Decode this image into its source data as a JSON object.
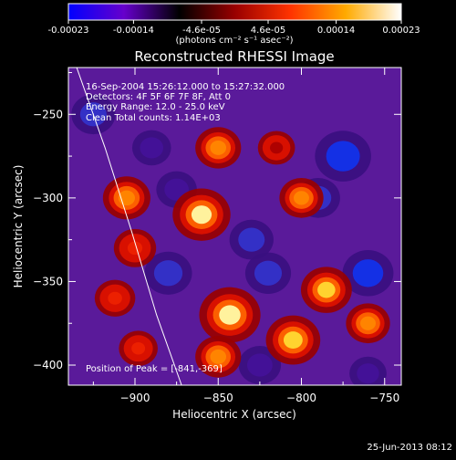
{
  "colorbar": {
    "tick_labels": [
      "-0.00023",
      "-0.00014",
      "-4.6e-05",
      "4.6e-05",
      "0.00014",
      "0.00023"
    ],
    "tick_values": [
      -0.00023,
      -0.00014,
      -4.6e-05,
      4.6e-05,
      0.00014,
      0.00023
    ],
    "range": [
      -0.00023,
      0.00023
    ],
    "units_label": "(photons cm⁻² s⁻¹ asec⁻²)",
    "colors": [
      "#0000ff",
      "#6600cc",
      "#000000",
      "#990000",
      "#ff3300",
      "#ffaa00",
      "#ffffff"
    ]
  },
  "chart_data": {
    "type": "heatmap",
    "title": "Reconstructed RHESSI Image",
    "xlabel": "Heliocentric X (arcsec)",
    "ylabel": "Heliocentric Y (arcsec)",
    "xlim": [
      -940,
      -740
    ],
    "ylim": [
      -412,
      -222
    ],
    "x_ticks": [
      -900,
      -850,
      -800,
      -750
    ],
    "y_ticks": [
      -250,
      -300,
      -350,
      -400
    ],
    "x_tick_labels": [
      "−900",
      "−850",
      "−800",
      "−750"
    ],
    "y_tick_labels": [
      "−250",
      "−300",
      "−350",
      "−400"
    ],
    "annotations": [
      "16-Sep-2004 15:26:12.000 to 15:27:32.000",
      "Detectors: 4F 5F 6F 7F 8F, Att 0",
      "Energy Range: 12.0 - 25.0 keV",
      "Clean    Total counts: 1.14E+03"
    ],
    "peak_label": "Position of Peak = [-841,-369]",
    "peak": [
      -841,
      -369
    ],
    "limb_curve": [
      [
        -935,
        -222
      ],
      [
        -918,
        -270
      ],
      [
        -902,
        -320
      ],
      [
        -887,
        -370
      ],
      [
        -872,
        -412
      ]
    ],
    "sources": [
      {
        "x": -850,
        "y": -270,
        "v": 0.55
      },
      {
        "x": -860,
        "y": -310,
        "v": 0.9
      },
      {
        "x": -843,
        "y": -370,
        "v": 1.0
      },
      {
        "x": -850,
        "y": -395,
        "v": 0.55
      },
      {
        "x": -905,
        "y": -300,
        "v": 0.6
      },
      {
        "x": -900,
        "y": -330,
        "v": 0.45
      },
      {
        "x": -912,
        "y": -360,
        "v": 0.4
      },
      {
        "x": -898,
        "y": -390,
        "v": 0.35
      },
      {
        "x": -785,
        "y": -355,
        "v": 0.7
      },
      {
        "x": -760,
        "y": -375,
        "v": 0.5
      },
      {
        "x": -805,
        "y": -385,
        "v": 0.8
      },
      {
        "x": -800,
        "y": -300,
        "v": 0.5
      },
      {
        "x": -815,
        "y": -270,
        "v": 0.3
      },
      {
        "x": -775,
        "y": -275,
        "v": -0.85
      },
      {
        "x": -790,
        "y": -300,
        "v": -0.5
      },
      {
        "x": -760,
        "y": -345,
        "v": -0.7
      },
      {
        "x": -820,
        "y": -345,
        "v": -0.55
      },
      {
        "x": -880,
        "y": -345,
        "v": -0.6
      },
      {
        "x": -875,
        "y": -295,
        "v": -0.4
      },
      {
        "x": -830,
        "y": -325,
        "v": -0.5
      },
      {
        "x": -825,
        "y": -400,
        "v": -0.45
      },
      {
        "x": -890,
        "y": -270,
        "v": -0.35
      },
      {
        "x": -925,
        "y": -250,
        "v": -0.5
      },
      {
        "x": -760,
        "y": -405,
        "v": -0.3
      }
    ]
  },
  "footer": {
    "date": "25-Jun-2013 08:12"
  }
}
